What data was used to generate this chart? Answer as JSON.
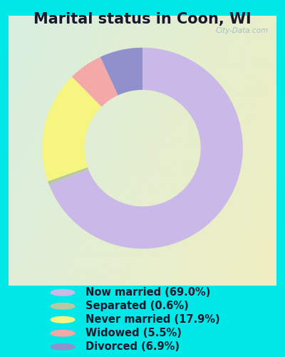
{
  "title": "Marital status in Coon, WI",
  "slices": [
    69.0,
    0.6,
    17.9,
    5.5,
    6.9
  ],
  "labels": [
    "Now married (69.0%)",
    "Separated (0.6%)",
    "Never married (17.9%)",
    "Widowed (5.5%)",
    "Divorced (6.9%)"
  ],
  "colors": [
    "#c9b8e8",
    "#b8c8a0",
    "#f5f580",
    "#f5a8a8",
    "#9090cc"
  ],
  "title_fontsize": 15,
  "legend_fontsize": 10.5,
  "bg_outer": "#00e8e8",
  "watermark": "City-Data.com",
  "donut_width": 0.42,
  "start_angle": 90
}
